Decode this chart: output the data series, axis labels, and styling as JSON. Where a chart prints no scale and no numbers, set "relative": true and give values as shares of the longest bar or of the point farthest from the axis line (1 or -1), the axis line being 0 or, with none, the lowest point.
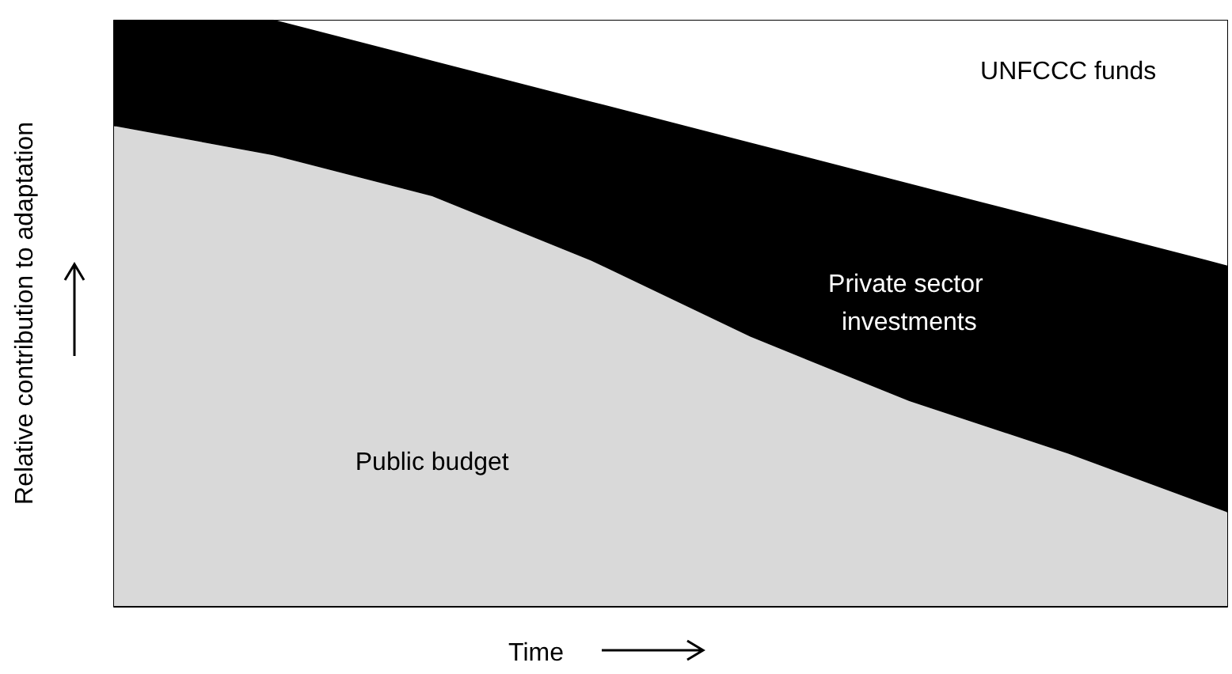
{
  "chart_data": {
    "type": "area",
    "stacked": true,
    "relative": true,
    "xlabel": "Time",
    "ylabel": "Relative contribution to adaptation",
    "legend": false,
    "grid": false,
    "categories": [
      null,
      null,
      null,
      null,
      null,
      null,
      null,
      null
    ],
    "series": [
      {
        "name": "Public budget",
        "color": "#d9d9d9",
        "values": [
          0.82,
          0.77,
          0.7,
          0.59,
          0.46,
          0.35,
          0.26,
          0.16
        ]
      },
      {
        "name": "Private sector investments",
        "color": "#000000",
        "values": [
          0.18,
          0.23,
          0.23,
          0.27,
          0.33,
          0.37,
          0.39,
          0.42
        ]
      },
      {
        "name": "UNFCCC funds",
        "color": "#ffffff",
        "values": [
          0,
          0,
          0.07,
          0.14,
          0.21,
          0.28,
          0.35,
          0.42
        ]
      }
    ]
  }
}
